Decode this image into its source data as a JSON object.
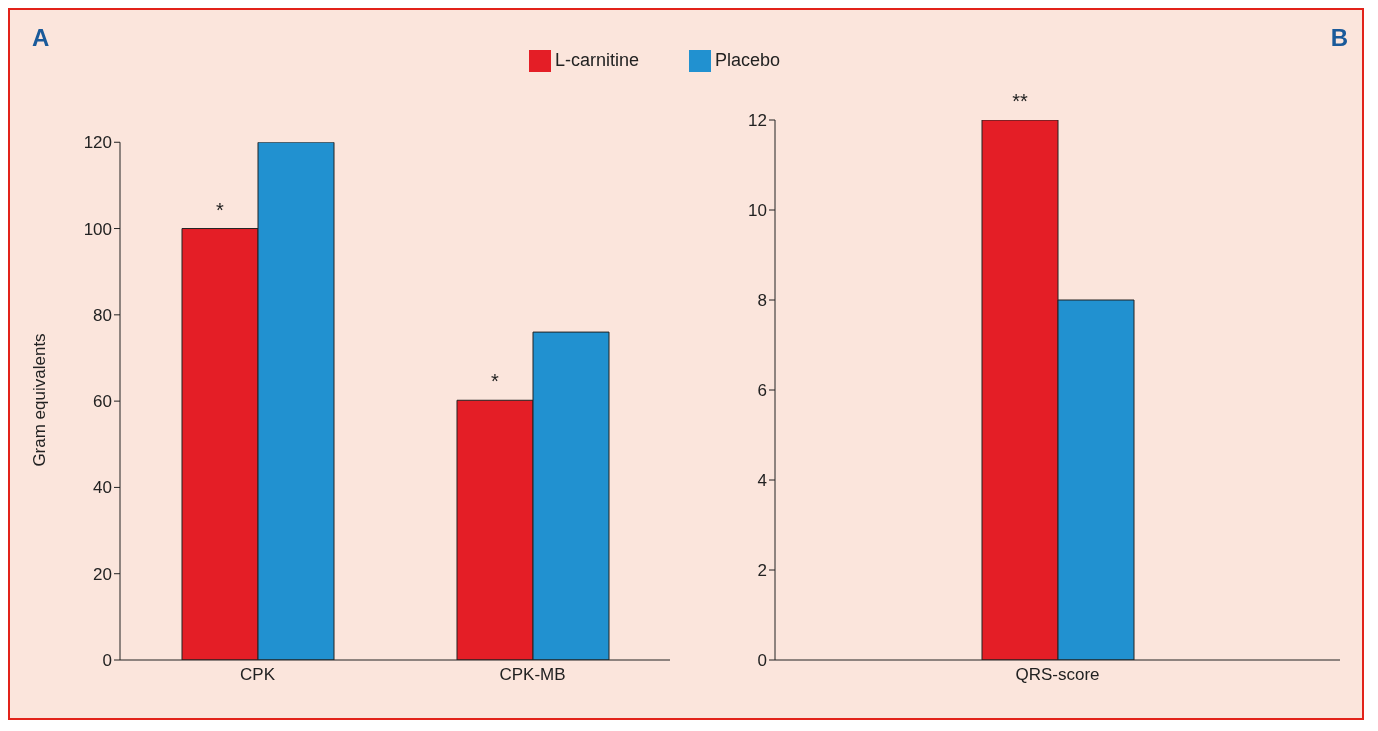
{
  "chart_data": [
    {
      "type": "bar",
      "title": "A",
      "ylabel": "Gram equivalents",
      "categories": [
        "CPK",
        "CPK-MB"
      ],
      "series": [
        {
          "name": "L-carnitine",
          "color": "#e41e26",
          "values": [
            100,
            60.2
          ]
        },
        {
          "name": "Placebo",
          "color": "#2191d0",
          "values": [
            120,
            76
          ]
        }
      ],
      "ylim": [
        0,
        120
      ],
      "yticks": [
        0,
        20,
        40,
        60,
        80,
        100,
        120
      ],
      "grid": false,
      "legend": "top right",
      "annotations": [
        {
          "text": "*",
          "x": "CPK",
          "y": 100
        },
        {
          "text": "*",
          "x": "CPK-MB",
          "y": 60.2
        }
      ]
    },
    {
      "type": "bar",
      "title": "B",
      "categories": [
        "QRS-score"
      ],
      "series": [
        {
          "color": "#e41e26",
          "values": [
            12
          ]
        },
        {
          "color": "#2191d0",
          "values": [
            8
          ]
        }
      ],
      "ylim": [
        0,
        12
      ],
      "yticks": [
        0,
        2,
        4,
        6,
        8,
        10,
        12
      ],
      "grid": false,
      "legend": false,
      "annotations": [
        {
          "text": "**",
          "x": "QRS-score",
          "y": 12
        }
      ]
    }
  ]
}
